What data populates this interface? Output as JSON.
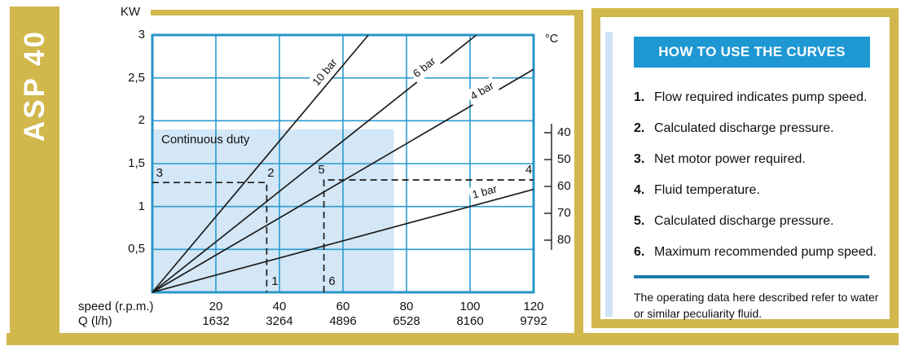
{
  "model": "ASP 40",
  "chart_data": {
    "type": "line",
    "title": "",
    "y_axis": {
      "label": "KW",
      "tick_labels": [
        "3",
        "2,5",
        "2",
        "1,5",
        "1",
        "0,5"
      ],
      "tick_values": [
        3,
        2.5,
        2,
        1.5,
        1,
        0.5
      ],
      "range_kw": [
        0,
        3
      ],
      "grid": true
    },
    "x_axis": {
      "rows": [
        {
          "label": "speed (r.p.m.)",
          "values": [
            "20",
            "40",
            "60",
            "80",
            "100",
            "120"
          ]
        },
        {
          "label": "Q (l/h)",
          "values": [
            "1632",
            "3264",
            "4896",
            "6528",
            "8160",
            "9792"
          ]
        }
      ],
      "tick_rpm": [
        20,
        40,
        60,
        80,
        100,
        120
      ],
      "range_rpm": [
        0,
        120
      ]
    },
    "temp_axis": {
      "label": "°C",
      "ticks": [
        40,
        50,
        60,
        70,
        80
      ],
      "position": "right-outside"
    },
    "series": [
      {
        "name": "10 bar",
        "points_rpm_kw": [
          [
            0,
            0
          ],
          [
            68,
            3
          ]
        ],
        "label_rpm": 56.5,
        "label_gap": 11
      },
      {
        "name": "6 bar",
        "points_rpm_kw": [
          [
            0,
            0
          ],
          [
            102,
            3
          ]
        ],
        "label_rpm": 87,
        "label_gap": 8
      },
      {
        "name": "4 bar",
        "points_rpm_kw": [
          [
            0,
            0
          ],
          [
            120,
            2.6
          ]
        ],
        "label_rpm": 105,
        "label_gap": 9
      },
      {
        "name": "1 bar",
        "points_rpm_kw": [
          [
            0,
            0
          ],
          [
            120,
            1.2
          ]
        ],
        "label_rpm": 105.5,
        "label_gap": 12
      }
    ],
    "continuous_duty": {
      "label": "Continuous duty",
      "rpm_range": [
        0,
        76
      ],
      "kw_range": [
        0,
        1.9
      ]
    },
    "example_paths": [
      {
        "points_rpm_kw": [
          [
            0,
            1.28
          ],
          [
            36,
            1.28
          ],
          [
            36,
            0
          ]
        ]
      },
      {
        "points_rpm_kw": [
          [
            54,
            0
          ],
          [
            54,
            1.31
          ],
          [
            120,
            1.31
          ]
        ]
      }
    ],
    "example_points": [
      {
        "label": "3",
        "rpm": 2,
        "kw": 1.28,
        "offset": [
          1,
          -11
        ]
      },
      {
        "label": "2",
        "rpm": 36,
        "kw": 1.28,
        "offset": [
          5,
          -11
        ]
      },
      {
        "label": "1",
        "rpm": 36,
        "kw": 0,
        "offset": [
          10,
          -13
        ]
      },
      {
        "label": "5",
        "rpm": 54,
        "kw": 1.31,
        "offset": [
          -3,
          -12
        ]
      },
      {
        "label": "4",
        "rpm": 118,
        "kw": 1.31,
        "offset": [
          2,
          -12
        ]
      },
      {
        "label": "6",
        "rpm": 54,
        "kw": 0,
        "offset": [
          10,
          -13
        ]
      }
    ],
    "colors": {
      "gold": "#d2b74c",
      "grid": "#2b9bce",
      "border": "#2795c9",
      "region": "#d3e7f7",
      "curve": "#1d1d1b",
      "header_blue": "#1e97d2",
      "divider_blue": "#1e7fae",
      "accent_strip": "#cfe3f5"
    },
    "legend_position": "on-curve-labels"
  },
  "instructions": {
    "title": "HOW TO USE THE CURVES",
    "items": [
      {
        "num": "1.",
        "text": "Flow required indicates pump speed."
      },
      {
        "num": "2.",
        "text": "Calculated discharge pressure."
      },
      {
        "num": "3.",
        "text": "Net motor power required."
      },
      {
        "num": "4.",
        "text": "Fluid temperature."
      },
      {
        "num": "5.",
        "text": "Calculated discharge pressure."
      },
      {
        "num": "6.",
        "text": "Maximum recommended pump speed."
      }
    ],
    "note": "The operating data here described refer to water or similar peculiarity fluid."
  }
}
